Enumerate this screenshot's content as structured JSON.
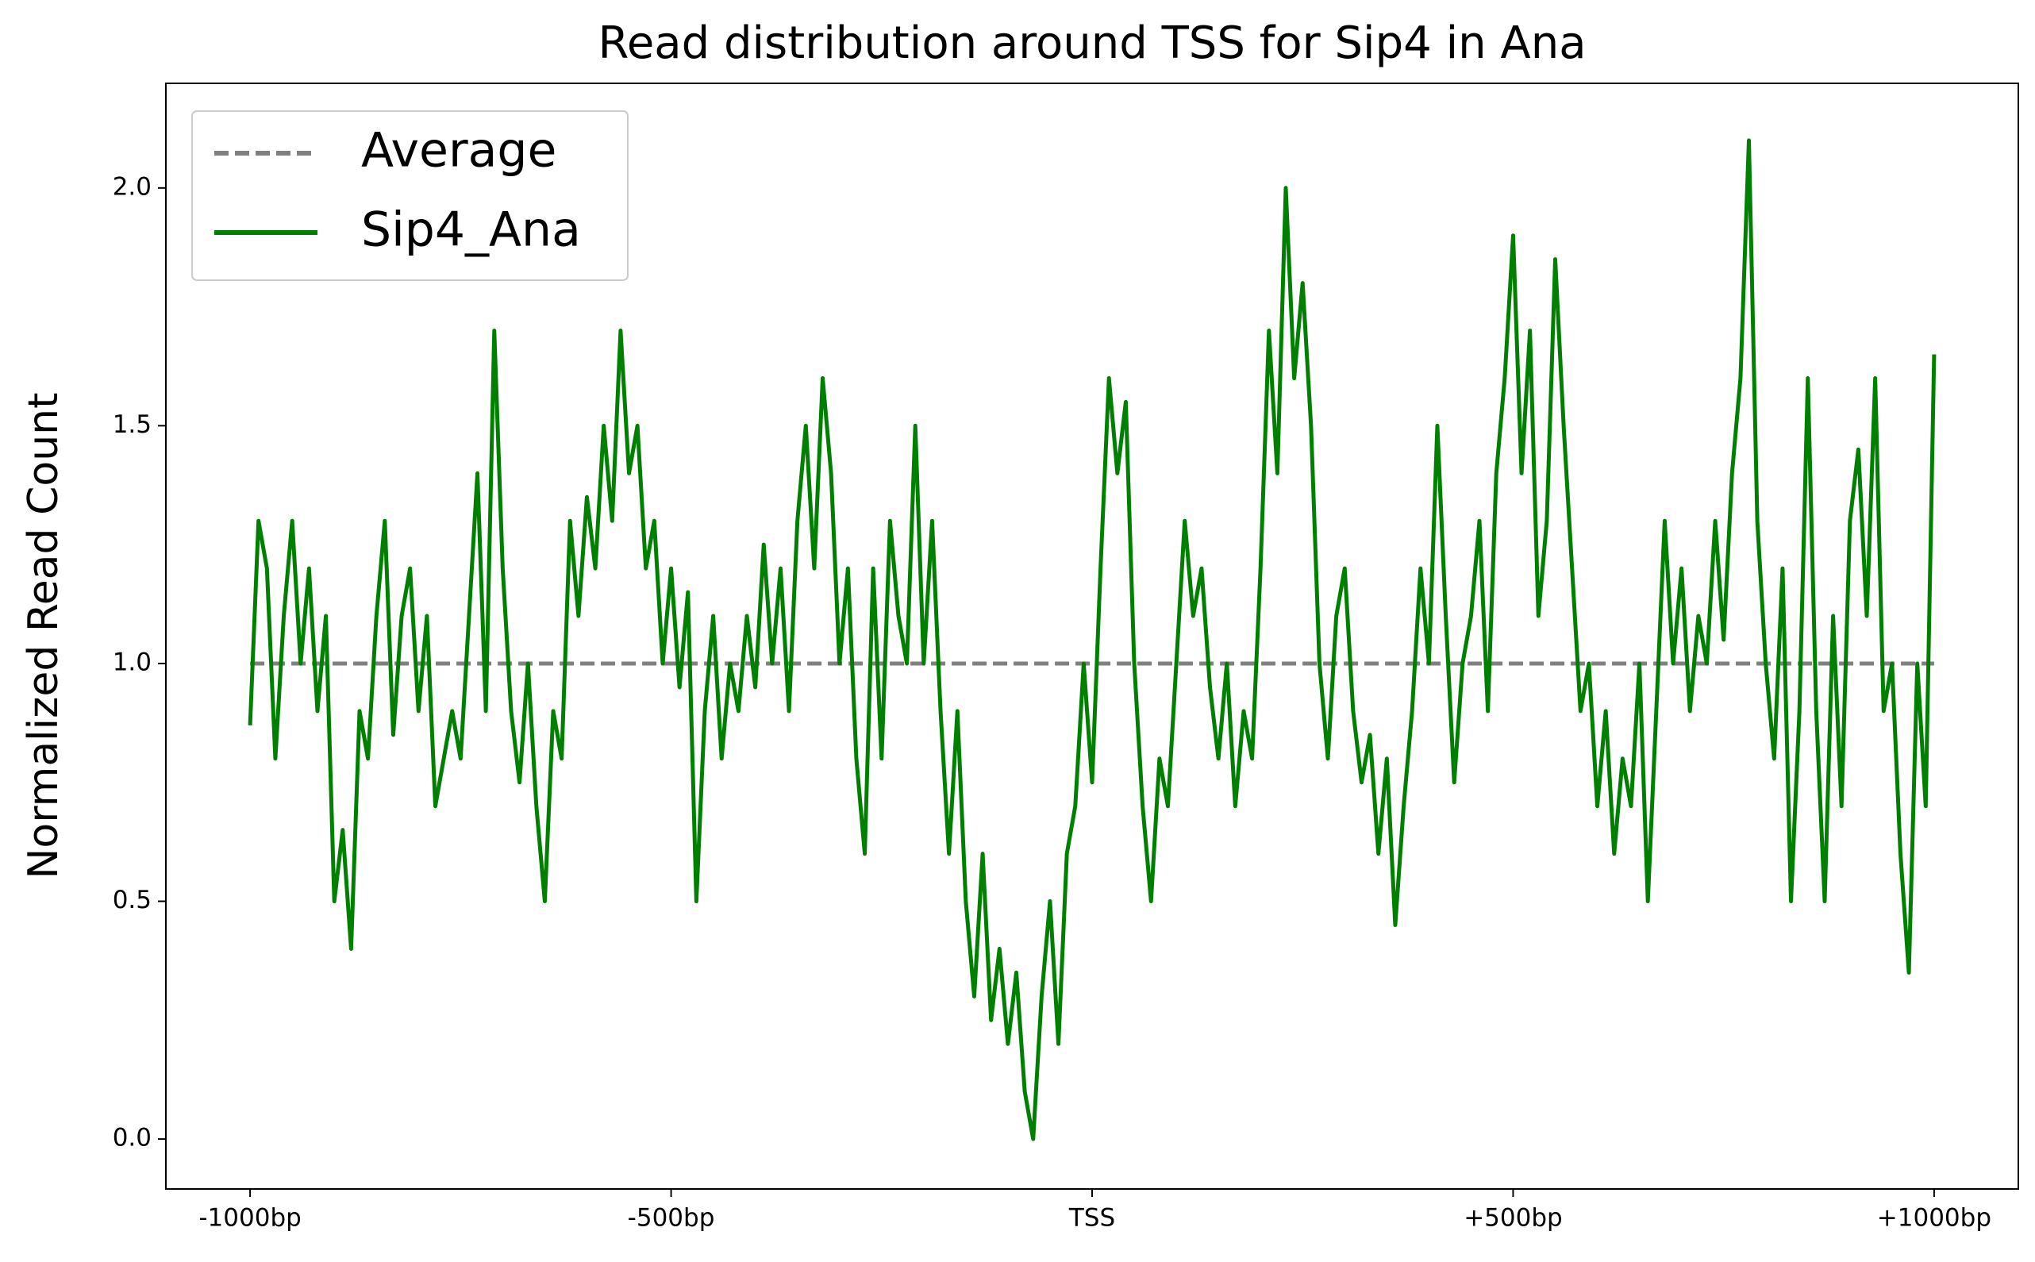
{
  "chart_data": {
    "type": "line",
    "title": "Read distribution around TSS for Sip4 in Ana",
    "y_label": "Normalized Read Count",
    "xlim": [
      -1100,
      1100
    ],
    "ylim": [
      -0.105,
      2.22
    ],
    "xticks": [
      {
        "value": -1000,
        "label": "-1000bp"
      },
      {
        "value": -500,
        "label": "-500bp"
      },
      {
        "value": 0,
        "label": "TSS"
      },
      {
        "value": 500,
        "label": "+500bp"
      },
      {
        "value": 1000,
        "label": "+1000bp"
      }
    ],
    "yticks": [
      {
        "value": 0,
        "label": "0.0"
      },
      0.5,
      {
        "value": 1,
        "label": "1.0"
      },
      1.5,
      {
        "value": 2,
        "label": "2.0"
      }
    ],
    "legend": "upper left",
    "series": [
      {
        "name": "Average",
        "color": "#808080",
        "linestyle": "dashed",
        "x": [
          -1000,
          1000
        ],
        "values": [
          1,
          1
        ]
      },
      {
        "name": "Sip4_Ana",
        "color": "#008000",
        "linestyle": "solid",
        "x": [
          -1000,
          -990,
          -980,
          -970,
          -960,
          -950,
          -940,
          -930,
          -920,
          -910,
          -900,
          -890,
          -880,
          -870,
          -860,
          -850,
          -840,
          -830,
          -820,
          -810,
          -800,
          -790,
          -780,
          -770,
          -760,
          -750,
          -740,
          -730,
          -720,
          -710,
          -700,
          -690,
          -680,
          -670,
          -660,
          -650,
          -640,
          -630,
          -620,
          -610,
          -600,
          -590,
          -580,
          -570,
          -560,
          -550,
          -540,
          -530,
          -520,
          -510,
          -500,
          -490,
          -480,
          -470,
          -460,
          -450,
          -440,
          -430,
          -420,
          -410,
          -400,
          -390,
          -380,
          -370,
          -360,
          -350,
          -340,
          -330,
          -320,
          -310,
          -300,
          -290,
          -280,
          -270,
          -260,
          -250,
          -240,
          -230,
          -220,
          -210,
          -200,
          -190,
          -180,
          -170,
          -160,
          -150,
          -140,
          -130,
          -120,
          -110,
          -100,
          -90,
          -80,
          -70,
          -60,
          -50,
          -40,
          -30,
          -20,
          -10,
          0,
          10,
          20,
          30,
          40,
          50,
          60,
          70,
          80,
          90,
          100,
          110,
          120,
          130,
          140,
          150,
          160,
          170,
          180,
          190,
          200,
          210,
          220,
          230,
          240,
          250,
          260,
          270,
          280,
          290,
          300,
          310,
          320,
          330,
          340,
          350,
          360,
          370,
          380,
          390,
          400,
          410,
          420,
          430,
          440,
          450,
          460,
          470,
          480,
          490,
          500,
          510,
          520,
          530,
          540,
          550,
          560,
          570,
          580,
          590,
          600,
          610,
          620,
          630,
          640,
          650,
          660,
          670,
          680,
          690,
          700,
          710,
          720,
          730,
          740,
          750,
          760,
          770,
          780,
          790,
          800,
          810,
          820,
          830,
          840,
          850,
          860,
          870,
          880,
          890,
          900,
          910,
          920,
          930,
          940,
          950,
          960,
          970,
          980,
          990,
          1000
        ],
        "values": [
          0.87,
          1.3,
          1.2,
          0.8,
          1.1,
          1.3,
          1.0,
          1.2,
          0.9,
          1.1,
          0.5,
          0.65,
          0.4,
          0.9,
          0.8,
          1.1,
          1.3,
          0.85,
          1.1,
          1.2,
          0.9,
          1.1,
          0.7,
          0.8,
          0.9,
          0.8,
          1.1,
          1.4,
          0.9,
          1.7,
          1.2,
          0.9,
          0.75,
          1.0,
          0.7,
          0.5,
          0.9,
          0.8,
          1.3,
          1.1,
          1.35,
          1.2,
          1.5,
          1.3,
          1.7,
          1.4,
          1.5,
          1.2,
          1.3,
          1.0,
          1.2,
          0.95,
          1.15,
          0.5,
          0.9,
          1.1,
          0.8,
          1.0,
          0.9,
          1.1,
          0.95,
          1.25,
          1.0,
          1.2,
          0.9,
          1.3,
          1.5,
          1.2,
          1.6,
          1.4,
          1.0,
          1.2,
          0.8,
          0.6,
          1.2,
          0.8,
          1.3,
          1.1,
          1.0,
          1.5,
          1.0,
          1.3,
          0.9,
          0.6,
          0.9,
          0.5,
          0.3,
          0.6,
          0.25,
          0.4,
          0.2,
          0.35,
          0.1,
          0.0,
          0.3,
          0.5,
          0.2,
          0.6,
          0.7,
          1.0,
          0.75,
          1.2,
          1.6,
          1.4,
          1.55,
          1.0,
          0.7,
          0.5,
          0.8,
          0.7,
          1.0,
          1.3,
          1.1,
          1.2,
          0.95,
          0.8,
          1.0,
          0.7,
          0.9,
          0.8,
          1.2,
          1.7,
          1.4,
          2.0,
          1.6,
          1.8,
          1.5,
          1.0,
          0.8,
          1.1,
          1.2,
          0.9,
          0.75,
          0.85,
          0.6,
          0.8,
          0.45,
          0.7,
          0.9,
          1.2,
          1.0,
          1.5,
          1.1,
          0.75,
          1.0,
          1.1,
          1.3,
          0.9,
          1.4,
          1.6,
          1.9,
          1.4,
          1.7,
          1.1,
          1.3,
          1.85,
          1.5,
          1.2,
          0.9,
          1.0,
          0.7,
          0.9,
          0.6,
          0.8,
          0.7,
          1.0,
          0.5,
          0.9,
          1.3,
          1.0,
          1.2,
          0.9,
          1.1,
          1.0,
          1.3,
          1.05,
          1.4,
          1.6,
          2.1,
          1.3,
          1.0,
          0.8,
          1.2,
          0.5,
          0.9,
          1.6,
          0.9,
          0.5,
          1.1,
          0.7,
          1.3,
          1.45,
          1.1,
          1.6,
          0.9,
          1.0,
          0.6,
          0.35,
          1.0,
          0.7,
          1.65
        ]
      }
    ]
  }
}
